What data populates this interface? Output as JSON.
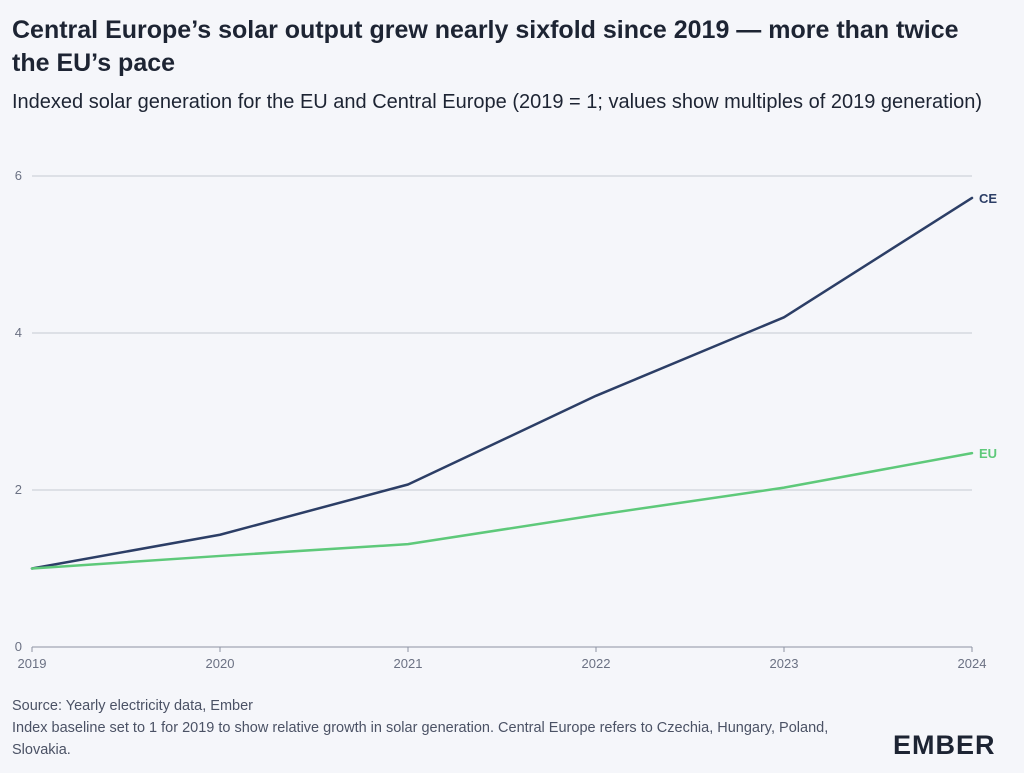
{
  "title": "Central Europe’s solar output grew nearly sixfold since 2019 — more than twice the EU’s pace",
  "subtitle": "Indexed solar generation for the EU and Central Europe (2019 = 1; values show multiples of 2019 generation)",
  "footer": {
    "source": "Source: Yearly electricity data, Ember",
    "note": "Index baseline set to 1 for 2019 to show relative growth in solar generation. Central Europe refers to Czechia, Hungary, Poland, Slovakia."
  },
  "logo_text": "EMBER",
  "chart_data": {
    "type": "line",
    "x": [
      "2019",
      "2020",
      "2021",
      "2022",
      "2023",
      "2024"
    ],
    "ylim": [
      0,
      6
    ],
    "yticks": [
      0,
      2,
      4,
      6
    ],
    "grid": true,
    "series": [
      {
        "name": "CE",
        "color": "#2c3e66",
        "values": [
          1.0,
          1.43,
          2.07,
          3.2,
          4.2,
          5.72
        ]
      },
      {
        "name": "EU",
        "color": "#5ec97a",
        "values": [
          1.0,
          1.16,
          1.31,
          1.68,
          2.03,
          2.47
        ]
      }
    ]
  }
}
